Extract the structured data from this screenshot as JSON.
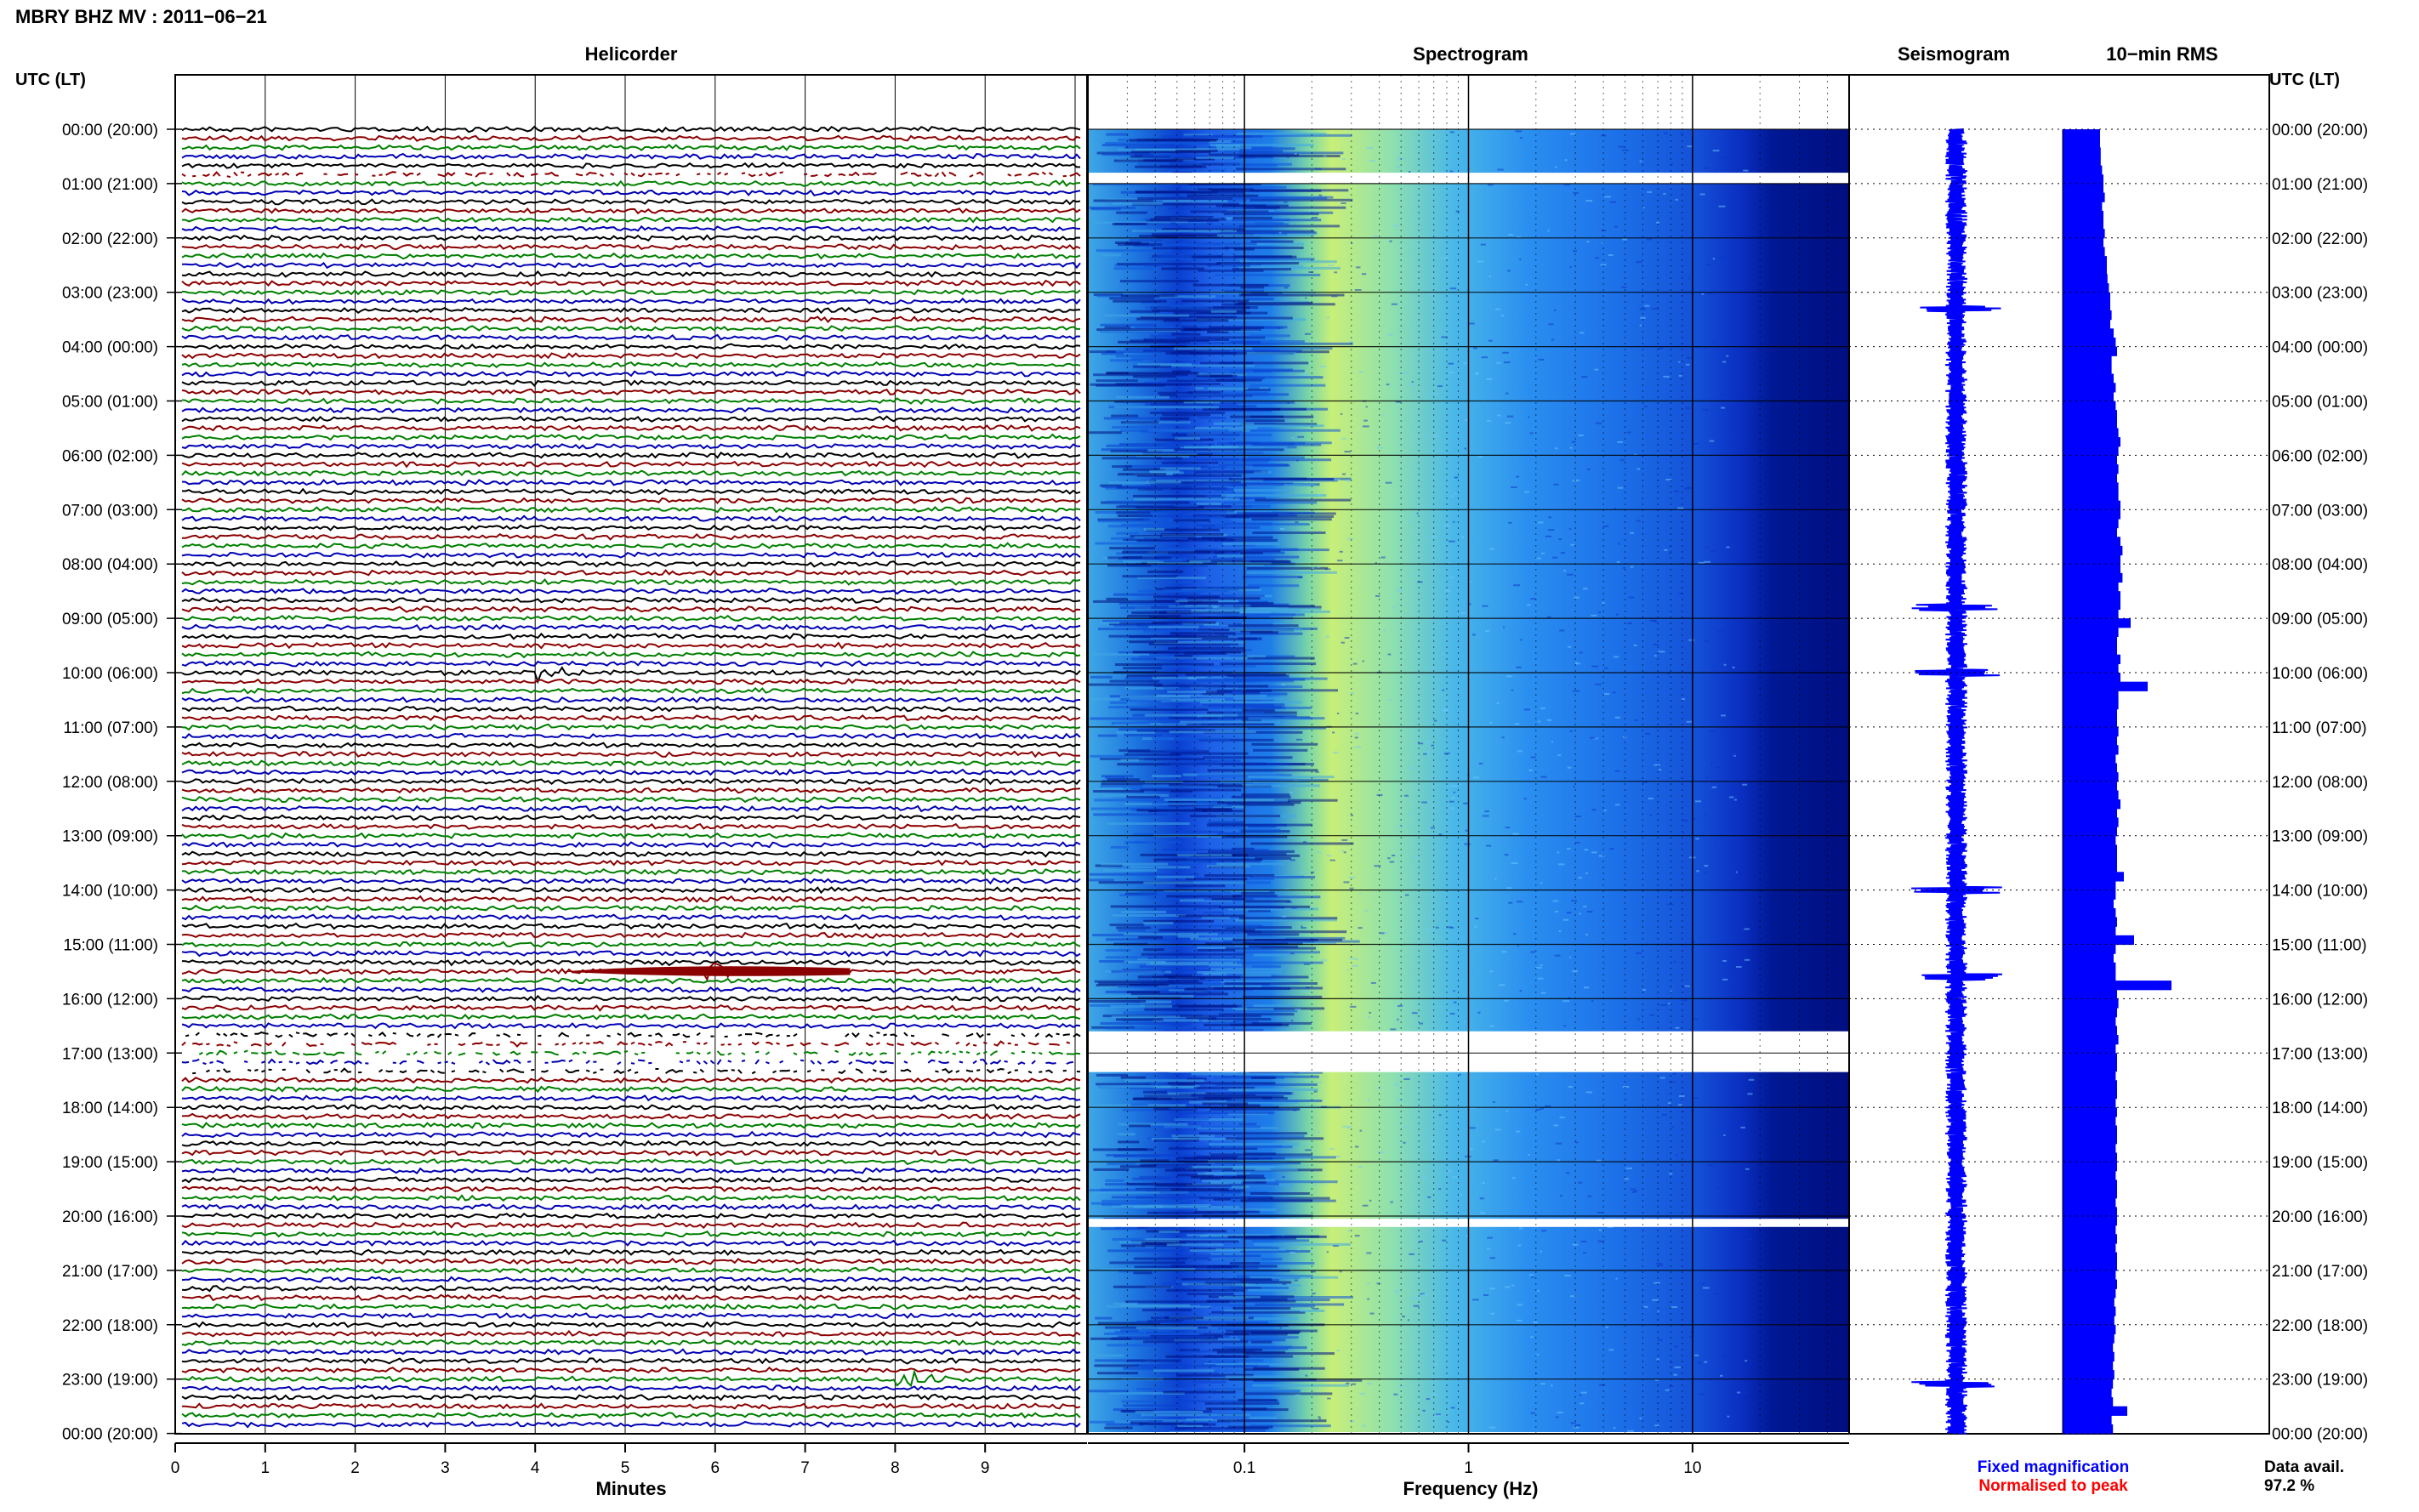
{
  "header": {
    "station_title": "MBRY BHZ MV : 2011−06−21"
  },
  "time_axis": {
    "heading_left": "UTC (LT)",
    "heading_right": "UTC (LT)",
    "labels": [
      "00:00 (20:00)",
      "01:00 (21:00)",
      "02:00 (22:00)",
      "03:00 (23:00)",
      "04:00 (00:00)",
      "05:00 (01:00)",
      "06:00 (02:00)",
      "07:00 (03:00)",
      "08:00 (04:00)",
      "09:00 (05:00)",
      "10:00 (06:00)",
      "11:00 (07:00)",
      "12:00 (08:00)",
      "13:00 (09:00)",
      "14:00 (10:00)",
      "15:00 (11:00)",
      "16:00 (12:00)",
      "17:00 (13:00)",
      "18:00 (14:00)",
      "19:00 (15:00)",
      "20:00 (16:00)",
      "21:00 (17:00)",
      "22:00 (18:00)",
      "23:00 (19:00)",
      "00:00 (20:00)"
    ]
  },
  "panels": {
    "helicorder_title": "Helicorder",
    "spectrogram_title": "Spectrogram",
    "seismogram_title": "Seismogram",
    "rms_title": "10−min RMS"
  },
  "legend": {
    "fixed": "Fixed magnification",
    "normalised": "Normalised to peak",
    "fixed_color": "#0000ff",
    "normalised_color": "#ff0000",
    "availability_label": "Data avail.",
    "availability_value": "97.2 %"
  },
  "colors": {
    "trace_cycle": [
      "#000000",
      "#8b0000",
      "#008000",
      "#0000b4"
    ],
    "spectro_low": "#000080",
    "spectro_mid": "#1e90ff",
    "spectro_high": "#c8ff50",
    "rms_fill": "#0000ff"
  },
  "chart_data": [
    {
      "type": "line",
      "title": "Helicorder",
      "xlabel": "Minutes",
      "x_ticks": [
        "0",
        "1",
        "2",
        "3",
        "4",
        "5",
        "6",
        "7",
        "8",
        "9"
      ],
      "xlim": [
        0,
        10
      ],
      "rows_per_hour": 6,
      "hours": 24,
      "data_gaps_utc_hours": [
        [
          0.8,
          1.0
        ],
        [
          16.6,
          17.35
        ]
      ],
      "events": [
        {
          "utc_hour": 10.0,
          "minute": 4.1
        },
        {
          "utc_hour": 15.5,
          "minute": 6.0
        },
        {
          "utc_hour": 23.0,
          "minute": 8.1
        }
      ]
    },
    {
      "type": "heatmap",
      "title": "Spectrogram",
      "xlabel": "Frequency (Hz)",
      "x_scale": "log",
      "x_ticks": [
        "0.1",
        "1",
        "10"
      ],
      "xlim": [
        0.02,
        50
      ],
      "ylim_utc_hours": [
        0,
        24
      ],
      "data_gaps_utc_hours": [
        [
          0.8,
          1.0
        ],
        [
          16.6,
          17.35
        ],
        [
          20.05,
          20.2
        ]
      ]
    },
    {
      "type": "line",
      "title": "Seismogram",
      "ylim_utc_hours": [
        0,
        24
      ],
      "spikes_utc_hours": [
        3.3,
        8.8,
        10.0,
        14.0,
        15.6,
        23.1
      ]
    },
    {
      "type": "bar",
      "title": "10−min RMS",
      "ylim_utc_hours": [
        0,
        24
      ],
      "relative_levels": [
        0.55,
        0.55,
        0.56,
        0.56,
        0.58,
        0.6,
        0.6,
        0.62,
        0.58,
        0.6,
        0.6,
        0.62,
        0.6,
        0.62,
        0.65,
        0.65,
        0.66,
        0.68,
        0.7,
        0.7,
        0.72,
        0.7,
        0.75,
        0.78,
        0.8,
        0.72,
        0.72,
        0.75,
        0.78,
        0.75,
        0.78,
        0.8,
        0.8,
        0.82,
        0.85,
        0.82,
        0.8,
        0.82,
        0.8,
        0.82,
        0.82,
        0.85,
        0.85,
        0.82,
        0.8,
        0.85,
        0.88,
        0.85,
        0.85,
        0.88,
        0.82,
        0.85,
        0.85,
        0.82,
        1.0,
        0.82,
        0.8,
        0.8,
        0.85,
        0.82,
        0.85,
        1.25,
        0.82,
        0.82,
        0.8,
        0.8,
        0.82,
        0.8,
        0.82,
        0.78,
        0.8,
        0.82,
        0.8,
        0.82,
        0.85,
        0.8,
        0.82,
        0.8,
        0.78,
        0.8,
        0.8,
        0.8,
        0.9,
        0.78,
        0.78,
        0.75,
        0.78,
        0.8,
        0.78,
        1.05,
        0.78,
        0.75,
        0.78,
        0.78,
        1.6,
        0.8,
        0.82,
        0.8,
        0.78,
        0.8,
        0.82,
        0.78,
        0.8,
        0.8,
        0.78,
        0.8,
        0.8,
        0.78,
        0.8,
        0.78,
        0.8,
        0.8,
        0.78,
        0.8,
        0.8,
        0.78,
        0.8,
        0.8,
        0.78,
        0.8,
        0.8,
        0.78,
        0.8,
        0.78,
        0.8,
        0.8,
        0.78,
        0.8,
        0.78,
        0.76,
        0.78,
        0.76,
        0.78,
        0.76,
        0.74,
        0.76,
        0.74,
        0.76,
        0.74,
        0.72,
        0.74,
        0.95,
        0.72,
        0.74
      ]
    }
  ]
}
